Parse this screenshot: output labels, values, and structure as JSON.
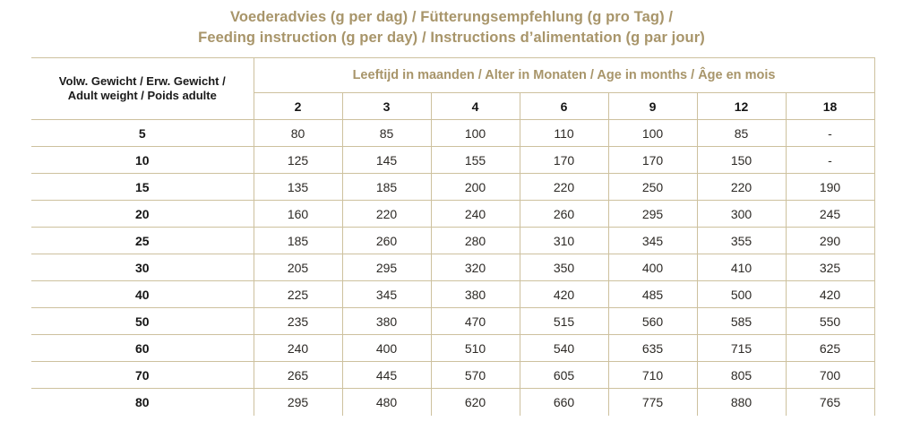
{
  "title": {
    "line1": "Voederadvies (g per dag) / Fütterungsempfehlung (g pro Tag) /",
    "line2": "Feeding instruction (g per day) / Instructions d’alimentation (g par jour)"
  },
  "table": {
    "weight_header_line1": "Volw. Gewicht / Erw. Gewicht /",
    "weight_header_line2": "Adult weight / Poids adulte",
    "age_header": "Leeftijd in maanden / Alter in Monaten / Age in months / Âge en mois",
    "age_columns": [
      "2",
      "3",
      "4",
      "6",
      "9",
      "12",
      "18"
    ],
    "rows": [
      {
        "weight": "5",
        "values": [
          "80",
          "85",
          "100",
          "110",
          "100",
          "85",
          "-"
        ]
      },
      {
        "weight": "10",
        "values": [
          "125",
          "145",
          "155",
          "170",
          "170",
          "150",
          "-"
        ]
      },
      {
        "weight": "15",
        "values": [
          "135",
          "185",
          "200",
          "220",
          "250",
          "220",
          "190"
        ]
      },
      {
        "weight": "20",
        "values": [
          "160",
          "220",
          "240",
          "260",
          "295",
          "300",
          "245"
        ]
      },
      {
        "weight": "25",
        "values": [
          "185",
          "260",
          "280",
          "310",
          "345",
          "355",
          "290"
        ]
      },
      {
        "weight": "30",
        "values": [
          "205",
          "295",
          "320",
          "350",
          "400",
          "410",
          "325"
        ]
      },
      {
        "weight": "40",
        "values": [
          "225",
          "345",
          "380",
          "420",
          "485",
          "500",
          "420"
        ]
      },
      {
        "weight": "50",
        "values": [
          "235",
          "380",
          "470",
          "515",
          "560",
          "585",
          "550"
        ]
      },
      {
        "weight": "60",
        "values": [
          "240",
          "400",
          "510",
          "540",
          "635",
          "715",
          "625"
        ]
      },
      {
        "weight": "70",
        "values": [
          "265",
          "445",
          "570",
          "605",
          "710",
          "805",
          "700"
        ]
      },
      {
        "weight": "80",
        "values": [
          "295",
          "480",
          "620",
          "660",
          "775",
          "880",
          "765"
        ]
      }
    ]
  },
  "colors": {
    "gold_text": "#a8956a",
    "table_line": "#cdc19e",
    "header_ink": "#1a1a1a",
    "value_ink": "#2d2a26",
    "background": "#ffffff"
  }
}
